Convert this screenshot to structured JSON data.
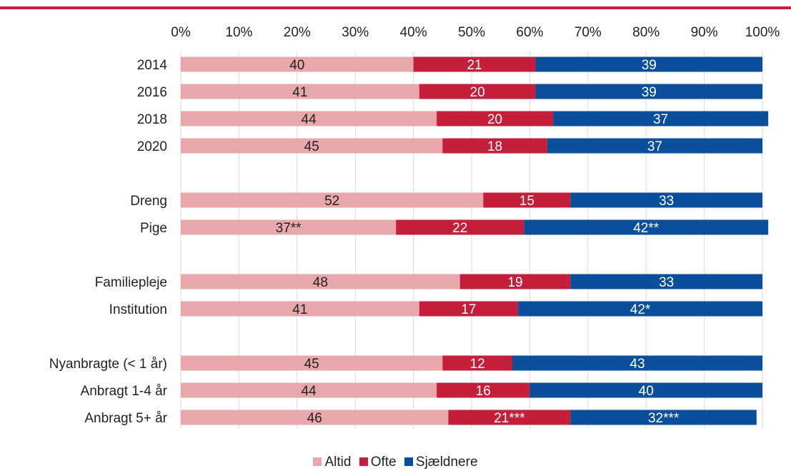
{
  "chart_data": {
    "type": "bar",
    "orientation": "horizontal",
    "stacked": "percent",
    "categories": [
      "2014",
      "2016",
      "2018",
      "2020",
      "Dreng",
      "Pige",
      "Familiepleje",
      "Institution",
      "Nyanbragte (< 1 år)",
      "Anbragt 1-4 år",
      "Anbragt 5+ år"
    ],
    "category_groups": [
      [
        0,
        1,
        2,
        3
      ],
      [
        4,
        5
      ],
      [
        6,
        7
      ],
      [
        8,
        9,
        10
      ]
    ],
    "series": [
      {
        "name": "Altid",
        "color": "#e8a7ab",
        "values": [
          40,
          41,
          44,
          45,
          52,
          37,
          48,
          41,
          45,
          44,
          46
        ],
        "labels": [
          "40",
          "41",
          "44",
          "45",
          "52",
          "37**",
          "48",
          "41",
          "45",
          "44",
          "46"
        ]
      },
      {
        "name": "Ofte",
        "color": "#c41e3a",
        "values": [
          21,
          20,
          20,
          18,
          15,
          22,
          19,
          17,
          12,
          16,
          21
        ],
        "labels": [
          "21",
          "20",
          "20",
          "18",
          "15",
          "22",
          "19",
          "17",
          "12",
          "16",
          "21***"
        ]
      },
      {
        "name": "Sjældnere",
        "color": "#0a4f9c",
        "values": [
          39,
          39,
          37,
          37,
          33,
          42,
          33,
          42,
          43,
          40,
          32
        ],
        "labels": [
          "39",
          "39",
          "37",
          "37",
          "33",
          "42**",
          "33",
          "42*",
          "43",
          "40",
          "32***"
        ]
      }
    ],
    "x_ticks": [
      "0%",
      "10%",
      "20%",
      "30%",
      "40%",
      "50%",
      "60%",
      "70%",
      "80%",
      "90%",
      "100%"
    ],
    "xlim": [
      0,
      100
    ],
    "x_axis_position": "top",
    "grid": true,
    "legend_position": "bottom"
  },
  "colors": {
    "accent_rule": "#c41e3a",
    "grid": "#d9d9d9",
    "text": "#222222",
    "label_on_light": "#222222",
    "label_on_dark": "#ffffff"
  }
}
